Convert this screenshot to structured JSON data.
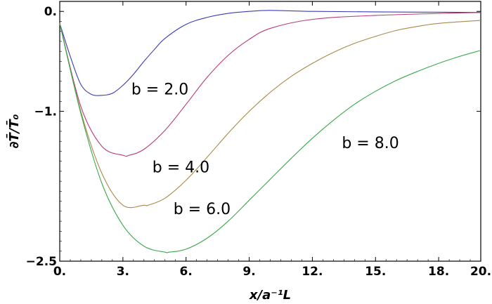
{
  "chart_data": {
    "type": "line",
    "xlabel": "x/a⁻¹L",
    "ylabel": "∂T̄/T̄₀",
    "xlim": [
      0,
      20
    ],
    "ylim": [
      -2.5,
      0.1
    ],
    "x_ticks": [
      {
        "value": 0,
        "label": "0."
      },
      {
        "value": 3,
        "label": "3."
      },
      {
        "value": 6,
        "label": "6."
      },
      {
        "value": 9,
        "label": "9."
      },
      {
        "value": 12,
        "label": "12."
      },
      {
        "value": 15,
        "label": "15."
      },
      {
        "value": 18,
        "label": "18."
      },
      {
        "value": 20,
        "label": "20."
      }
    ],
    "y_ticks": [
      {
        "value": 0,
        "label": "0."
      },
      {
        "value": -1,
        "label": "−1."
      },
      {
        "value": -2.5,
        "label": "−2.5"
      }
    ],
    "grid": false,
    "series": [
      {
        "color": "#3b3bb8",
        "x": [
          0,
          0.5,
          1,
          1.5,
          2,
          2.5,
          3,
          3.5,
          4,
          4.5,
          5,
          6,
          7,
          8,
          9,
          10,
          12,
          15,
          20
        ],
        "y": [
          -0.12,
          -0.45,
          -0.73,
          -0.83,
          -0.84,
          -0.82,
          -0.74,
          -0.63,
          -0.5,
          -0.38,
          -0.27,
          -0.13,
          -0.06,
          -0.02,
          0.0,
          0.01,
          0.0,
          -0.005,
          -0.01
        ]
      },
      {
        "color": "#b83a7a",
        "x": [
          0,
          1,
          2,
          3,
          3.3,
          4,
          5,
          6,
          7,
          8,
          9,
          10,
          12,
          15,
          20
        ],
        "y": [
          -0.12,
          -0.95,
          -1.35,
          -1.44,
          -1.44,
          -1.38,
          -1.19,
          -0.93,
          -0.66,
          -0.44,
          -0.28,
          -0.17,
          -0.08,
          -0.04,
          -0.01
        ]
      },
      {
        "color": "#a8894a",
        "x": [
          0,
          1,
          2,
          3,
          4,
          4.2,
          5,
          6,
          7,
          8,
          9,
          10,
          11,
          12,
          13,
          14,
          15,
          16,
          17,
          18,
          20
        ],
        "y": [
          -0.12,
          -1.0,
          -1.62,
          -1.94,
          -1.94,
          -1.94,
          -1.87,
          -1.69,
          -1.46,
          -1.22,
          -1.0,
          -0.81,
          -0.65,
          -0.52,
          -0.41,
          -0.32,
          -0.25,
          -0.19,
          -0.15,
          -0.12,
          -0.09
        ]
      },
      {
        "color": "#3aa84a",
        "x": [
          0,
          1,
          2,
          3,
          4,
          5,
          5.2,
          6,
          7,
          8,
          9,
          10,
          11,
          12,
          13,
          14,
          15,
          16,
          17,
          18,
          19,
          20
        ],
        "y": [
          -0.12,
          -1.02,
          -1.72,
          -2.14,
          -2.35,
          -2.41,
          -2.41,
          -2.38,
          -2.27,
          -2.1,
          -1.89,
          -1.68,
          -1.47,
          -1.27,
          -1.09,
          -0.93,
          -0.8,
          -0.69,
          -0.6,
          -0.52,
          -0.45,
          -0.39
        ]
      }
    ],
    "annotations": [
      {
        "text": "b = 2.0",
        "x": 3.4,
        "y": -0.83
      },
      {
        "text": "b = 4.0",
        "x": 4.4,
        "y": -1.61
      },
      {
        "text": "b = 6.0",
        "x": 5.4,
        "y": -2.03
      },
      {
        "text": "b = 8.0",
        "x": 13.4,
        "y": -1.37
      }
    ]
  }
}
